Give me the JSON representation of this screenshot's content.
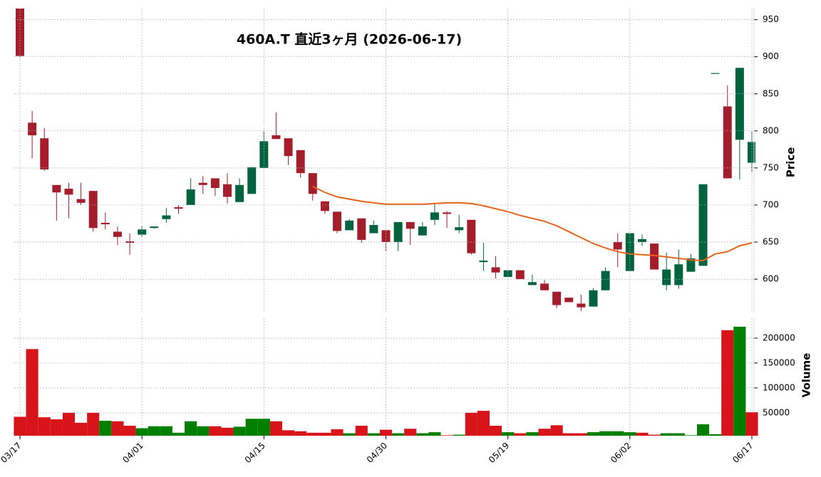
{
  "chart_data": {
    "type": "candlestick",
    "title": "460A.T  直近3ヶ月  (2026-06-17)",
    "ylabel": "Price",
    "categories": [
      "03/17",
      null,
      null,
      null,
      null,
      null,
      null,
      null,
      null,
      null,
      "04/01",
      null,
      null,
      null,
      null,
      null,
      null,
      null,
      null,
      null,
      "04/15",
      null,
      null,
      null,
      null,
      null,
      null,
      null,
      null,
      null,
      "04/30",
      null,
      null,
      null,
      null,
      null,
      null,
      null,
      null,
      null,
      "05/19",
      null,
      null,
      null,
      null,
      null,
      null,
      null,
      null,
      null,
      "06/02",
      null,
      null,
      null,
      null,
      null,
      null,
      null,
      null,
      null,
      "06/17"
    ],
    "ylim": [
      554,
      965
    ],
    "yticks": [
      600,
      650,
      700,
      750,
      800,
      850,
      900,
      950
    ],
    "grid": true,
    "up_color": "#006340",
    "down_color": "#a31d2b",
    "open": [
      965,
      811,
      790,
      727,
      722,
      708,
      719,
      676,
      664,
      651,
      660,
      669,
      681,
      697,
      700,
      730,
      736,
      728,
      704,
      715,
      750,
      794,
      790,
      774,
      743,
      705,
      691,
      666,
      682,
      662,
      666,
      650,
      677,
      659,
      680,
      690,
      666,
      680,
      623,
      616,
      603,
      612,
      592,
      594,
      583,
      575,
      567,
      563,
      585,
      650,
      611,
      650,
      648,
      592,
      592,
      610,
      618,
      878,
      833,
      788,
      757
    ],
    "high": [
      965,
      827,
      804,
      727,
      730,
      730,
      719,
      690,
      671,
      662,
      671,
      671,
      696,
      700,
      736,
      739,
      736,
      743,
      736,
      751,
      800,
      825,
      790,
      774,
      743,
      705,
      691,
      681,
      682,
      679,
      666,
      677,
      677,
      677,
      702,
      692,
      687,
      680,
      649,
      631,
      612,
      612,
      606,
      599,
      583,
      575,
      579,
      588,
      616,
      662,
      662,
      660,
      648,
      636,
      640,
      634,
      728,
      878,
      861,
      885,
      800
    ],
    "low": [
      900,
      763,
      746,
      679,
      682,
      700,
      664,
      667,
      646,
      633,
      657,
      668,
      676,
      688,
      700,
      715,
      712,
      702,
      704,
      715,
      750,
      789,
      754,
      737,
      706,
      688,
      662,
      666,
      649,
      662,
      638,
      638,
      646,
      659,
      673,
      669,
      662,
      633,
      611,
      601,
      603,
      600,
      592,
      585,
      561,
      569,
      557,
      563,
      585,
      616,
      611,
      645,
      613,
      585,
      587,
      610,
      618,
      878,
      736,
      734,
      744
    ],
    "close": [
      901,
      794,
      748,
      717,
      714,
      703,
      669,
      674,
      657,
      649,
      667,
      671,
      686,
      695,
      721,
      727,
      723,
      711,
      727,
      751,
      786,
      789,
      766,
      743,
      715,
      692,
      665,
      679,
      653,
      673,
      650,
      677,
      668,
      671,
      690,
      688,
      670,
      635,
      625,
      609,
      612,
      600,
      596,
      585,
      565,
      569,
      562,
      585,
      611,
      640,
      662,
      654,
      613,
      613,
      620,
      628,
      728,
      878,
      736,
      885,
      785
    ],
    "overlay": {
      "type": "line",
      "color": "#e8621a",
      "values": [
        null,
        null,
        null,
        null,
        null,
        null,
        null,
        null,
        null,
        null,
        null,
        null,
        null,
        null,
        null,
        null,
        null,
        null,
        null,
        null,
        null,
        null,
        null,
        null,
        725,
        717,
        711,
        708,
        705,
        703,
        701,
        701,
        701,
        701,
        702,
        703,
        703,
        702,
        699,
        695,
        691,
        686,
        682,
        678,
        672,
        664,
        656,
        648,
        642,
        637,
        634,
        633,
        632,
        630,
        628,
        626,
        625,
        634,
        637,
        645,
        649
      ]
    },
    "volume": {
      "ylabel": "Volume",
      "ylim": [
        4000,
        240000
      ],
      "yticks": [
        50000,
        100000,
        150000,
        200000
      ],
      "values": [
        42000,
        178000,
        41000,
        37000,
        50000,
        30000,
        50000,
        34000,
        33000,
        24000,
        19000,
        23000,
        23000,
        10000,
        33000,
        23000,
        23000,
        20000,
        22000,
        38000,
        38000,
        33000,
        15000,
        13000,
        10000,
        10000,
        17000,
        9000,
        24000,
        9000,
        16000,
        9000,
        18000,
        9000,
        11000,
        5000,
        6000,
        50000,
        54000,
        24000,
        11000,
        9000,
        11000,
        18000,
        25000,
        9000,
        9000,
        11000,
        13000,
        13000,
        11000,
        10000,
        6000,
        9000,
        9000,
        5000,
        27000,
        7000,
        216000,
        223000,
        51000
      ],
      "colors": [
        "#d7141a",
        "#d7141a",
        "#d7141a",
        "#d7141a",
        "#d7141a",
        "#d7141a",
        "#d7141a",
        "#007f00",
        "#d7141a",
        "#d7141a",
        "#007f00",
        "#007f00",
        "#007f00",
        "#007f00",
        "#007f00",
        "#007f00",
        "#d7141a",
        "#d7141a",
        "#007f00",
        "#007f00",
        "#007f00",
        "#d7141a",
        "#d7141a",
        "#d7141a",
        "#d7141a",
        "#d7141a",
        "#d7141a",
        "#007f00",
        "#d7141a",
        "#007f00",
        "#d7141a",
        "#007f00",
        "#d7141a",
        "#007f00",
        "#007f00",
        "#d7141a",
        "#007f00",
        "#d7141a",
        "#d7141a",
        "#d7141a",
        "#007f00",
        "#d7141a",
        "#007f00",
        "#d7141a",
        "#d7141a",
        "#d7141a",
        "#d7141a",
        "#007f00",
        "#007f00",
        "#007f00",
        "#007f00",
        "#d7141a",
        "#d7141a",
        "#007f00",
        "#007f00",
        "#007f00",
        "#007f00",
        "#007f00",
        "#d7141a",
        "#007f00",
        "#d7141a"
      ]
    }
  }
}
